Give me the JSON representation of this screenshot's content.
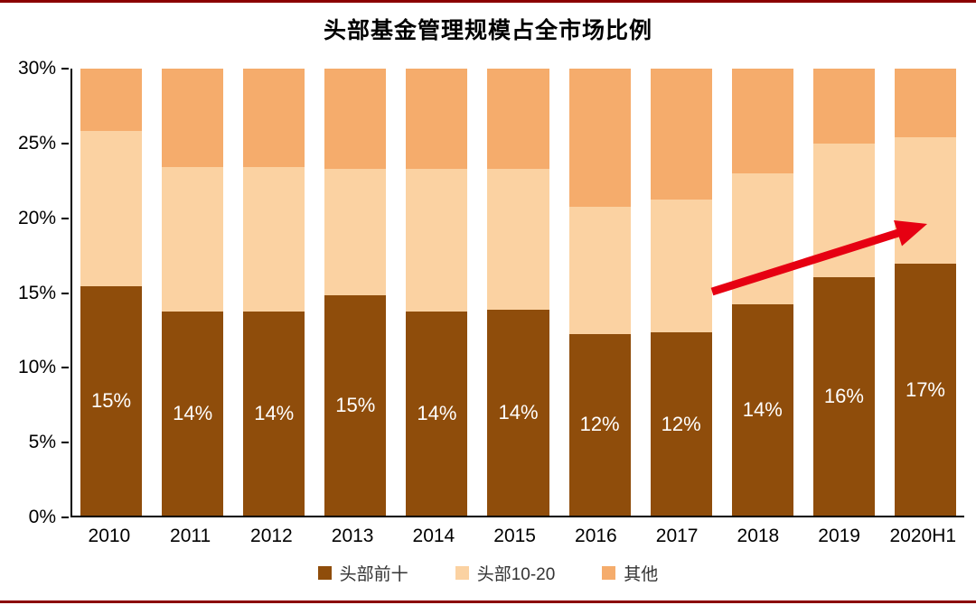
{
  "chart_data": {
    "type": "bar",
    "variant": "stacked",
    "title": "头部基金管理规模占全市场比例",
    "categories": [
      "2010",
      "2011",
      "2012",
      "2013",
      "2014",
      "2015",
      "2016",
      "2017",
      "2018",
      "2019",
      "2020H1"
    ],
    "series": [
      {
        "name": "头部前十",
        "color": "#8F4D0B",
        "values": [
          15.4,
          13.7,
          13.7,
          14.8,
          13.7,
          13.8,
          12.2,
          12.3,
          14.2,
          16.0,
          16.9
        ]
      },
      {
        "name": "头部10-20",
        "color": "#FBD2A2",
        "values": [
          10.4,
          9.7,
          9.7,
          8.5,
          9.6,
          9.5,
          8.5,
          8.9,
          8.8,
          9.0,
          8.5
        ]
      },
      {
        "name": "其他",
        "color": "#F5AC6C",
        "values": [
          4.2,
          6.6,
          6.6,
          6.7,
          6.7,
          6.7,
          9.3,
          8.8,
          7.0,
          5.0,
          4.6
        ]
      }
    ],
    "bar_labels": [
      "15%",
      "14%",
      "14%",
      "15%",
      "14%",
      "14%",
      "12%",
      "12%",
      "14%",
      "16%",
      "17%"
    ],
    "bar_label_series": "头部前十",
    "ylim": [
      0,
      30
    ],
    "yticks": [
      "0%",
      "5%",
      "10%",
      "15%",
      "20%",
      "25%",
      "30%"
    ],
    "grid": false,
    "legend_position": "bottom",
    "annotation": {
      "type": "arrow",
      "color": "#E60012",
      "description": "red upward trend arrow over the 2018 to 2020H1 bars"
    }
  },
  "style": {
    "accent_line_color": "#8B0000",
    "bar_label_text_color": "#FFFFFF",
    "background": "#FFFFFF"
  }
}
